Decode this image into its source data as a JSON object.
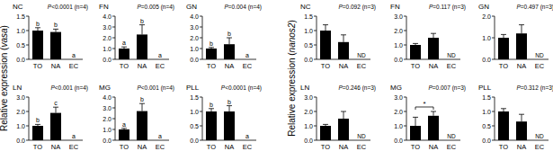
{
  "chart_data": [
    {
      "type": "bar",
      "title": "NC",
      "subtitle": "P<0.0001 (n=4)",
      "ylabel": "Relative expression (vasa)",
      "categories": [
        "TO",
        "NA",
        "EC"
      ],
      "values": [
        1.0,
        0.95,
        0.0
      ],
      "errors": [
        0.1,
        0.1,
        null
      ],
      "letters": [
        "b",
        "b",
        "a"
      ],
      "color": "#000000",
      "ylim": [
        0,
        1.5
      ],
      "yticks": [
        {
          "value": 0,
          "label": "0.0"
        },
        {
          "value": 0.5,
          "label": "0.5"
        },
        {
          "value": 1,
          "label": "1.0"
        },
        {
          "value": 1.5,
          "label": "1.5"
        }
      ]
    },
    {
      "type": "bar",
      "title": "FN",
      "subtitle": "P=0.005 (n=4)",
      "categories": [
        "TO",
        "NA",
        "EC"
      ],
      "values": [
        1.0,
        2.3,
        0.0
      ],
      "errors": [
        0.15,
        0.9,
        null
      ],
      "letters": [
        "a",
        "b",
        "a"
      ],
      "color": "#000000",
      "ylim": [
        0,
        4
      ],
      "yticks": [
        {
          "value": 0,
          "label": "0.0"
        },
        {
          "value": 1,
          "label": "1.0"
        },
        {
          "value": 2,
          "label": "2.0"
        },
        {
          "value": 3,
          "label": "3.0"
        },
        {
          "value": 4,
          "label": "4.0"
        }
      ]
    },
    {
      "type": "bar",
      "title": "GN",
      "subtitle": "P=0.004 (n=4)",
      "categories": [
        "TO",
        "NA",
        "EC"
      ],
      "values": [
        1.0,
        1.4,
        0.0
      ],
      "errors": [
        0.1,
        0.6,
        null
      ],
      "letters": [
        "b",
        "b",
        "a"
      ],
      "color": "#000000",
      "ylim": [
        0,
        4
      ],
      "yticks": [
        {
          "value": 0,
          "label": "0.0"
        },
        {
          "value": 1,
          "label": "1.0"
        },
        {
          "value": 2,
          "label": "2.0"
        },
        {
          "value": 3,
          "label": "3.0"
        },
        {
          "value": 4,
          "label": "4.0"
        }
      ]
    },
    {
      "type": "bar",
      "title": "LN",
      "subtitle": "P<0.001 (n=4)",
      "categories": [
        "TO",
        "NA",
        "EC"
      ],
      "values": [
        1.0,
        1.9,
        0.0
      ],
      "errors": [
        0.1,
        0.4,
        null
      ],
      "letters": [
        "b",
        "c",
        "a"
      ],
      "color": "#000000",
      "ylim": [
        0,
        3
      ],
      "yticks": [
        {
          "value": 0,
          "label": "0.0"
        },
        {
          "value": 1,
          "label": "1.0"
        },
        {
          "value": 2,
          "label": "2.0"
        },
        {
          "value": 3,
          "label": "3.0"
        }
      ]
    },
    {
      "type": "bar",
      "title": "MG",
      "subtitle": "P<0.001 (n=4)",
      "categories": [
        "TO",
        "NA",
        "EC"
      ],
      "values": [
        1.0,
        2.7,
        0.0
      ],
      "errors": [
        0.1,
        0.7,
        null
      ],
      "letters": [
        "a",
        "b",
        "a"
      ],
      "color": "#000000",
      "ylim": [
        0,
        4
      ],
      "yticks": [
        {
          "value": 0,
          "label": "0.0"
        },
        {
          "value": 1,
          "label": "1.0"
        },
        {
          "value": 2,
          "label": "2.0"
        },
        {
          "value": 3,
          "label": "3.0"
        },
        {
          "value": 4,
          "label": "4.0"
        }
      ]
    },
    {
      "type": "bar",
      "title": "PLL",
      "subtitle": "P<0.0001 (n=4)",
      "categories": [
        "TO",
        "NA",
        "EC"
      ],
      "values": [
        1.0,
        1.0,
        0.0
      ],
      "errors": [
        0.1,
        0.2,
        null
      ],
      "letters": [
        "b",
        "b",
        "a"
      ],
      "color": "#000000",
      "ylim": [
        0,
        1.5
      ],
      "yticks": [
        {
          "value": 0,
          "label": "0.0"
        },
        {
          "value": 0.5,
          "label": "0.5"
        },
        {
          "value": 1,
          "label": "1.0"
        },
        {
          "value": 1.5,
          "label": "1.5"
        }
      ]
    },
    {
      "type": "bar",
      "title": "NC",
      "subtitle": "P=0.092 (n=3)",
      "ylabel": "Relative expression (nanos2)",
      "categories": [
        "TO",
        "NA",
        "EC"
      ],
      "values": [
        1.0,
        0.6,
        null
      ],
      "value_labels": [
        null,
        null,
        "ND"
      ],
      "errors": [
        0.2,
        0.25,
        null
      ],
      "color": "#000000",
      "ylim": [
        0,
        1.5
      ],
      "yticks": [
        {
          "value": 0,
          "label": "0.0"
        },
        {
          "value": 0.5,
          "label": "0.5"
        },
        {
          "value": 1,
          "label": "1.0"
        },
        {
          "value": 1.5,
          "label": "1.5"
        }
      ]
    },
    {
      "type": "bar",
      "title": "FN",
      "subtitle": "P=0.117 (n=3)",
      "categories": [
        "TO",
        "NA",
        "EC"
      ],
      "values": [
        1.0,
        1.5,
        null
      ],
      "value_labels": [
        null,
        null,
        "ND"
      ],
      "errors": [
        0.1,
        0.3,
        null
      ],
      "color": "#000000",
      "ylim": [
        0,
        3
      ],
      "yticks": [
        {
          "value": 0,
          "label": "0.0"
        },
        {
          "value": 1,
          "label": "1.0"
        },
        {
          "value": 2,
          "label": "2.0"
        },
        {
          "value": 3,
          "label": "3.0"
        }
      ]
    },
    {
      "type": "bar",
      "title": "GN",
      "subtitle": "P=0.497 (n=3)",
      "categories": [
        "TO",
        "NA",
        "EC"
      ],
      "values": [
        1.0,
        1.2,
        null
      ],
      "value_labels": [
        null,
        null,
        "ND"
      ],
      "errors": [
        0.15,
        0.4,
        null
      ],
      "color": "#000000",
      "ylim": [
        0,
        2
      ],
      "yticks": [
        {
          "value": 0,
          "label": "0.0"
        },
        {
          "value": 1,
          "label": "1.0"
        },
        {
          "value": 2,
          "label": "2.0"
        }
      ]
    },
    {
      "type": "bar",
      "title": "LN",
      "subtitle": "P=0.246 (n=3)",
      "categories": [
        "TO",
        "NA",
        "EC"
      ],
      "values": [
        1.0,
        1.5,
        null
      ],
      "value_labels": [
        null,
        null,
        "ND"
      ],
      "errors": [
        0.1,
        0.5,
        null
      ],
      "color": "#000000",
      "ylim": [
        0,
        3
      ],
      "yticks": [
        {
          "value": 0,
          "label": "0.0"
        },
        {
          "value": 1,
          "label": "1.0"
        },
        {
          "value": 2,
          "label": "2.0"
        },
        {
          "value": 3,
          "label": "3.0"
        }
      ]
    },
    {
      "type": "bar",
      "title": "MG",
      "subtitle": "P=0.007 (n=3)",
      "annotation": "*",
      "categories": [
        "TO",
        "NA",
        "EC"
      ],
      "values": [
        1.0,
        1.7,
        null
      ],
      "value_labels": [
        null,
        null,
        "ND"
      ],
      "errors": [
        0.6,
        0.3,
        null
      ],
      "color": "#000000",
      "ylim": [
        0,
        3
      ],
      "yticks": [
        {
          "value": 0,
          "label": "0.0"
        },
        {
          "value": 1,
          "label": "1.0"
        },
        {
          "value": 2,
          "label": "2.0"
        },
        {
          "value": 3,
          "label": "3.0"
        }
      ]
    },
    {
      "type": "bar",
      "title": "PLL",
      "subtitle": "P=0.312 (n=3)",
      "categories": [
        "TO",
        "NA",
        "EC"
      ],
      "values": [
        1.0,
        0.65,
        null
      ],
      "value_labels": [
        null,
        null,
        "ND"
      ],
      "errors": [
        0.1,
        0.25,
        null
      ],
      "color": "#000000",
      "ylim": [
        0,
        1.5
      ],
      "yticks": [
        {
          "value": 0,
          "label": "0.0"
        },
        {
          "value": 0.5,
          "label": "0.5"
        },
        {
          "value": 1,
          "label": "1.0"
        },
        {
          "value": 1.5,
          "label": "1.5"
        }
      ]
    }
  ]
}
